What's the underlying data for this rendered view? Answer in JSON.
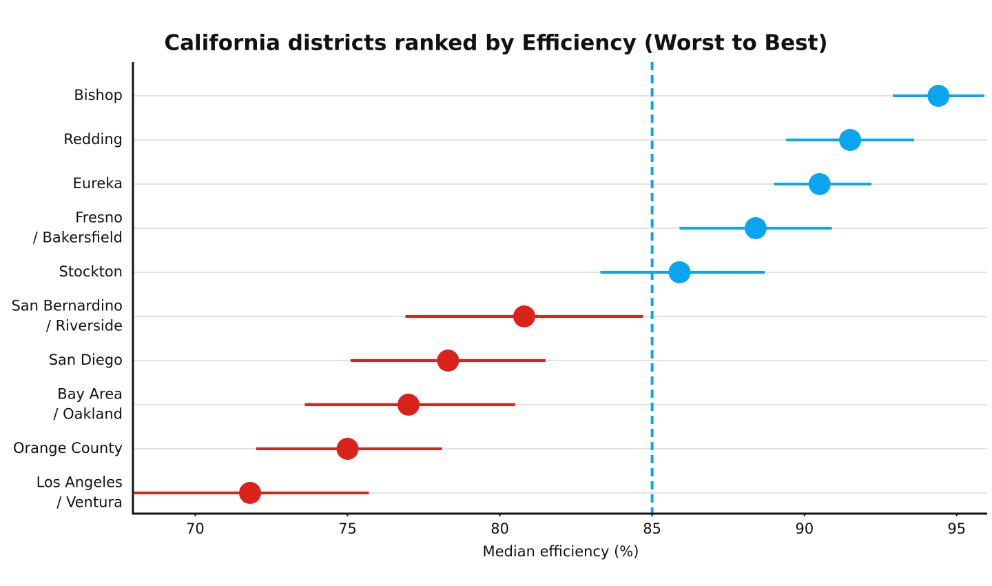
{
  "chart_data": {
    "type": "dot-interval",
    "title": "California districts ranked by Efficiency (Worst to Best)",
    "x_label": "Median efficiency (%)",
    "categories": [
      "Bishop",
      "Redding",
      "Eureka",
      "Fresno\n/ Bakersfield",
      "Stockton",
      "San Bernardino\n/ Riverside",
      "San Diego",
      "Bay Area\n/ Oakland",
      "Orange County",
      "Los Angeles\n/ Ventura"
    ],
    "values": [
      94.4,
      91.5,
      90.5,
      88.4,
      85.9,
      80.8,
      78.3,
      77.0,
      75.0,
      71.8
    ],
    "low": [
      92.9,
      89.4,
      89.0,
      85.9,
      83.3,
      76.9,
      75.1,
      73.6,
      72.0,
      68.0
    ],
    "high": [
      95.9,
      93.6,
      92.2,
      90.9,
      88.7,
      84.7,
      81.5,
      80.5,
      78.1,
      75.7
    ],
    "colors": [
      "#0aa5f0",
      "#0aa5f0",
      "#0aa5f0",
      "#0aa5f0",
      "#0aa5f0",
      "#d9231a",
      "#d9231a",
      "#d9231a",
      "#d9231a",
      "#d9231a"
    ],
    "reference_line": 85,
    "reference_color": "#0aa5f0",
    "xlim": [
      68,
      96
    ],
    "xticks": [
      70,
      75,
      80,
      85,
      90,
      95
    ],
    "grid": true
  }
}
